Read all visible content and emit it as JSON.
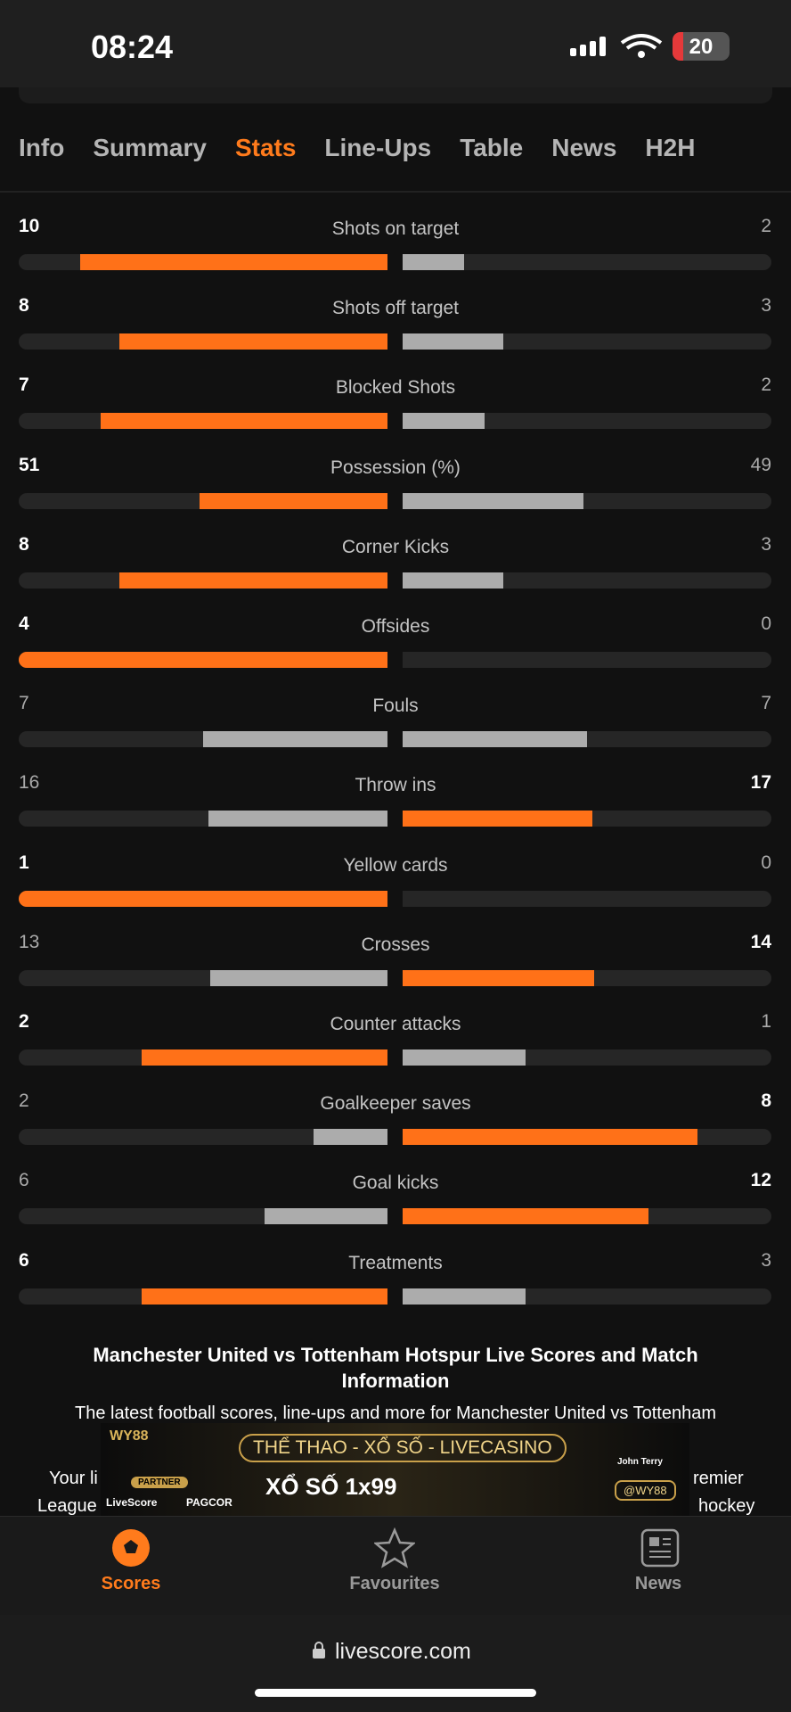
{
  "status_bar": {
    "time": "08:24",
    "battery": "20"
  },
  "tabs": [
    "Info",
    "Summary",
    "Stats",
    "Line-Ups",
    "Table",
    "News",
    "H2H"
  ],
  "active_tab": "Stats",
  "stats": [
    {
      "name": "Shots on target",
      "home": 10,
      "away": 2
    },
    {
      "name": "Shots off target",
      "home": 8,
      "away": 3
    },
    {
      "name": "Blocked Shots",
      "home": 7,
      "away": 2
    },
    {
      "name": "Possession (%)",
      "home": 51,
      "away": 49
    },
    {
      "name": "Corner Kicks",
      "home": 8,
      "away": 3
    },
    {
      "name": "Offsides",
      "home": 4,
      "away": 0
    },
    {
      "name": "Fouls",
      "home": 7,
      "away": 7
    },
    {
      "name": "Throw ins",
      "home": 16,
      "away": 17
    },
    {
      "name": "Yellow cards",
      "home": 1,
      "away": 0
    },
    {
      "name": "Crosses",
      "home": 13,
      "away": 14
    },
    {
      "name": "Counter attacks",
      "home": 2,
      "away": 1
    },
    {
      "name": "Goalkeeper saves",
      "home": 2,
      "away": 8
    },
    {
      "name": "Goal kicks",
      "home": 6,
      "away": 12
    },
    {
      "name": "Treatments",
      "home": 6,
      "away": 3
    }
  ],
  "info": {
    "title": "Manchester United vs Tottenham Hotspur Live Scores and Match Information",
    "line1": "The latest football scores, line-ups and more for Manchester United vs Tottenham",
    "fragments": [
      "Your li",
      "remier",
      "League",
      "hockey"
    ]
  },
  "ad": {
    "brand": "WY88",
    "headline": "THỂ THAO - XỔ SỐ - LIVECASINO",
    "badge": "PARTNER",
    "promo": "XỔ SỐ 1x99",
    "partners": [
      "LiveScore",
      "PAGCOR"
    ],
    "person": "John Terry",
    "handle": "@WY88"
  },
  "nav": [
    "Scores",
    "Favourites",
    "News"
  ],
  "active_nav": "Scores",
  "url": "livescore.com"
}
